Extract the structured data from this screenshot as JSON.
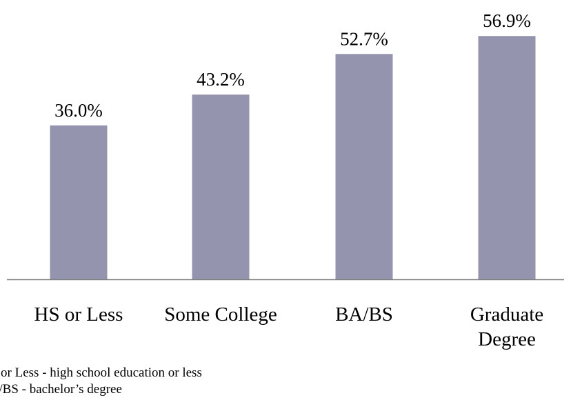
{
  "chart_data": {
    "type": "bar",
    "categories": [
      "HS or Less",
      "Some College",
      "BA/BS",
      "Graduate Degree"
    ],
    "category_lines": [
      [
        "HS or Less"
      ],
      [
        "Some College"
      ],
      [
        "BA/BS"
      ],
      [
        "Graduate",
        "Degree"
      ]
    ],
    "values": [
      36.0,
      43.2,
      52.7,
      56.9
    ],
    "value_labels": [
      "36.0%",
      "43.2%",
      "52.7%",
      "56.9%"
    ],
    "title": "",
    "xlabel": "",
    "ylabel": "",
    "ylim": [
      0,
      60
    ],
    "grid": false,
    "legend": "none",
    "bar_color": "#9494ae",
    "axis_color": "#808080"
  },
  "footnotes": [
    "HS or Less - high school education or less",
    "BA/BS - bachelor’s degree"
  ]
}
